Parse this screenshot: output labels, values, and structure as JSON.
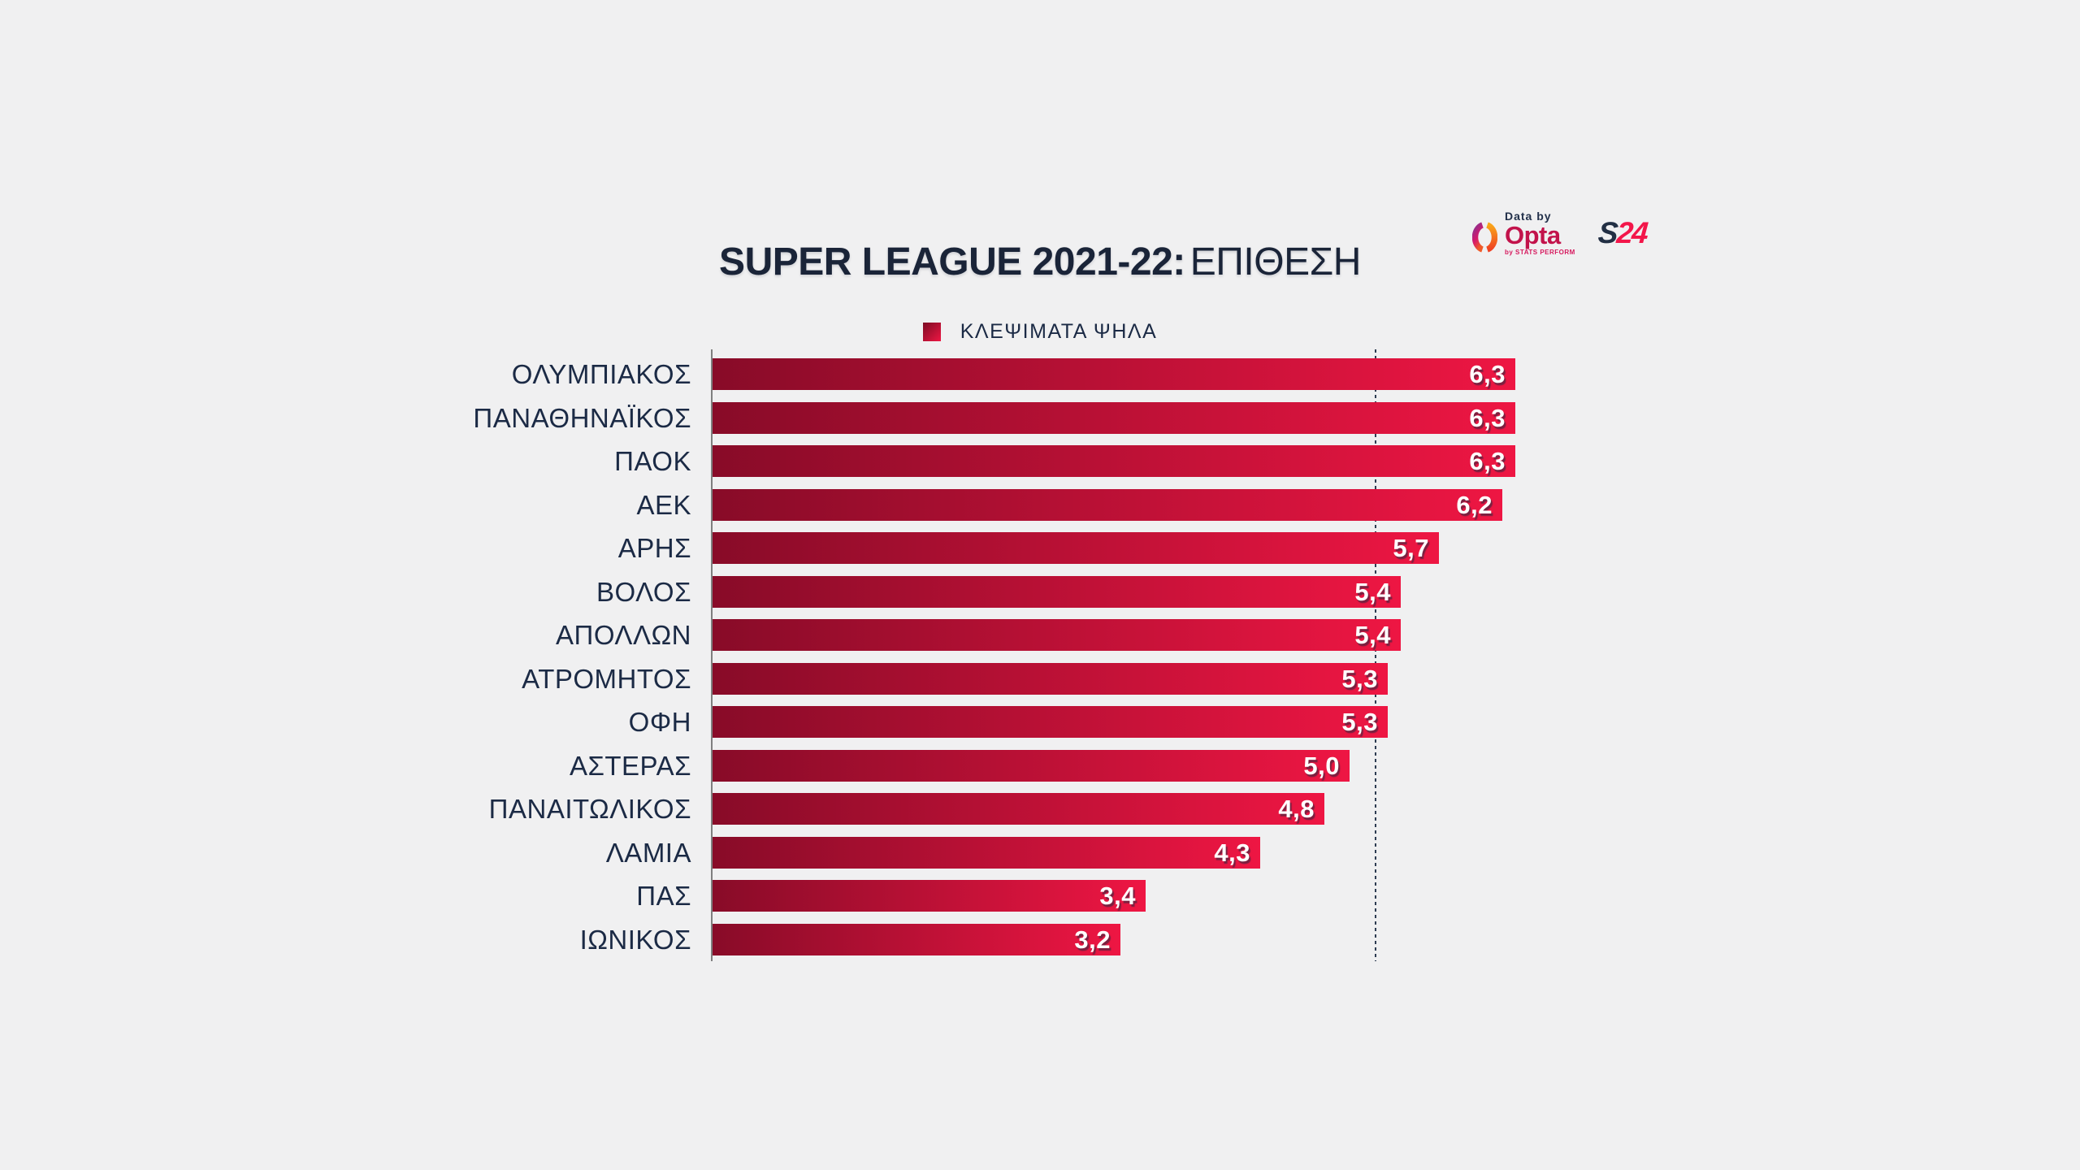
{
  "title": {
    "main": "SUPER LEAGUE 2021-22:",
    "sub": "ΕΠΙΘΕΣΗ"
  },
  "branding": {
    "data_by": "Data by",
    "opta": "Opta",
    "stats_perform": "by STATS PERFORM",
    "s24_s": "S",
    "s24_24": "24"
  },
  "legend": {
    "label": "ΚΛΕΨΙΜΑΤΑ ΨΗΛΑ"
  },
  "chart_data": {
    "type": "bar",
    "orientation": "horizontal",
    "title": "SUPER LEAGUE 2021-22: ΕΠΙΘΕΣΗ",
    "legend_label": "ΚΛΕΨΙΜΑΤΑ ΨΗΛΑ",
    "legend_position": "top-center",
    "grid": false,
    "xlim": [
      0,
      6.3
    ],
    "decimal_separator": ",",
    "average_line_value": 5.2,
    "categories": [
      "ΟΛΥΜΠΙΑΚΟΣ",
      "ΠΑΝΑΘΗΝΑΪΚΟΣ",
      "ΠΑΟΚ",
      "ΑΕΚ",
      "ΑΡΗΣ",
      "ΒΟΛΟΣ",
      "ΑΠΟΛΛΩΝ",
      "ΑΤΡΟΜΗΤΟΣ",
      "ΟΦΗ",
      "ΑΣΤΕΡΑΣ",
      "ΠΑΝΑΙΤΩΛΙΚΟΣ",
      "ΛΑΜΙΑ",
      "ΠΑΣ",
      "ΙΩΝΙΚΟΣ"
    ],
    "values": [
      6.3,
      6.3,
      6.3,
      6.2,
      5.7,
      5.4,
      5.4,
      5.3,
      5.3,
      5.0,
      4.8,
      4.3,
      3.4,
      3.2
    ],
    "value_labels": [
      "6,3",
      "6,3",
      "6,3",
      "6,2",
      "5,7",
      "5,4",
      "5,4",
      "5,3",
      "5,3",
      "5,0",
      "4,8",
      "4,3",
      "3,4",
      "3,2"
    ],
    "colors": {
      "bar_gradient_start": "#880b28",
      "bar_gradient_end": "#ee1643",
      "label_text": "#1b2a45",
      "value_text": "#ffffff",
      "background": "#f0f0f1",
      "baseline": "#7f7f7f",
      "average_line": "#2e3d52"
    }
  }
}
